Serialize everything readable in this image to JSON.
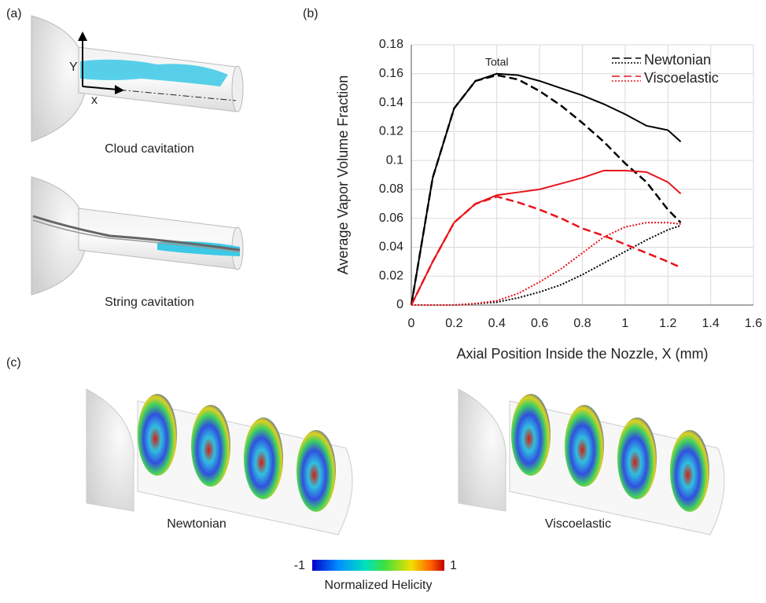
{
  "panel_a": {
    "label": "(a)",
    "axis_y": "Y",
    "axis_x": "x",
    "caption_top": "Cloud cavitation",
    "caption_bottom": "String cavitation"
  },
  "panel_b": {
    "label": "(b)"
  },
  "panel_c": {
    "label": "(c)",
    "caption_left": "Newtonian",
    "caption_right": "Viscoelastic",
    "colorbar": {
      "min": -1,
      "max": 1,
      "label": "Normalized Helicity"
    }
  },
  "chart_data": {
    "type": "line",
    "y_label": "Average Vapor Volume Fraction",
    "x_label": "Axial Position Inside the Nozzle, X (mm)",
    "annotation": "Total",
    "x": [
      0,
      0.1,
      0.2,
      0.3,
      0.4,
      0.5,
      0.6,
      0.7,
      0.8,
      0.9,
      1.0,
      1.1,
      1.2,
      1.26
    ],
    "xlim": [
      0,
      1.6
    ],
    "xticks": [
      0,
      0.2,
      0.4,
      0.6,
      0.8,
      1,
      1.2,
      1.4,
      1.6
    ],
    "ylim": [
      0,
      0.18
    ],
    "yticks": [
      0,
      0.02,
      0.04,
      0.06,
      0.08,
      0.1,
      0.12,
      0.14,
      0.16,
      0.18
    ],
    "grid": true,
    "legend": "top-right",
    "series": [
      {
        "name": "Newtonian",
        "color": "#000000",
        "lines": [
          {
            "style": "solid",
            "values": [
              0,
              0.088,
              0.136,
              0.155,
              0.16,
              0.159,
              0.155,
              0.15,
              0.145,
              0.139,
              0.132,
              0.124,
              0.121,
              0.113
            ]
          },
          {
            "style": "dashed",
            "values": [
              0,
              0.088,
              0.136,
              0.155,
              0.159,
              0.156,
              0.148,
              0.138,
              0.126,
              0.113,
              0.098,
              0.085,
              0.066,
              0.057
            ]
          },
          {
            "style": "dotted",
            "values": [
              0,
              0,
              0,
              0.001,
              0.002,
              0.005,
              0.009,
              0.014,
              0.021,
              0.029,
              0.037,
              0.045,
              0.052,
              0.055
            ]
          }
        ]
      },
      {
        "name": "Viscoelastic",
        "color": "#e8141b",
        "lines": [
          {
            "style": "solid",
            "values": [
              0,
              0.03,
              0.057,
              0.07,
              0.076,
              0.078,
              0.08,
              0.084,
              0.088,
              0.093,
              0.093,
              0.092,
              0.085,
              0.077
            ]
          },
          {
            "style": "dashed",
            "values": [
              0,
              0.03,
              0.057,
              0.07,
              0.075,
              0.071,
              0.066,
              0.06,
              0.053,
              0.048,
              0.042,
              0.036,
              0.03,
              0.026
            ]
          },
          {
            "style": "dotted",
            "values": [
              0,
              0,
              0,
              0.001,
              0.003,
              0.008,
              0.016,
              0.025,
              0.036,
              0.047,
              0.054,
              0.057,
              0.057,
              0.056
            ]
          }
        ]
      }
    ]
  }
}
